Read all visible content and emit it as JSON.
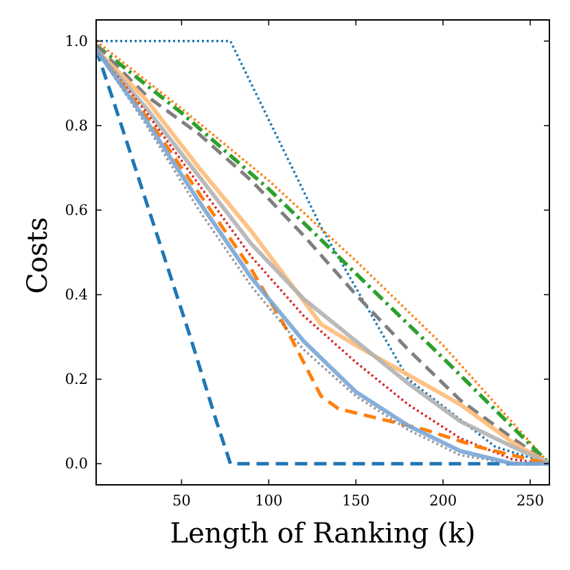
{
  "chart_data": {
    "type": "line",
    "title": "",
    "xlabel": "Length of Ranking (k)",
    "ylabel": "Costs",
    "xlim": [
      1,
      261
    ],
    "ylim": [
      -0.05,
      1.05
    ],
    "xticks": [
      50,
      100,
      150,
      200,
      250
    ],
    "xtick_labels": [
      "50",
      "100",
      "150",
      "200",
      "250"
    ],
    "yticks": [
      0.0,
      0.2,
      0.4,
      0.6,
      0.8,
      1.0
    ],
    "ytick_labels": [
      "0.0",
      "0.2",
      "0.4",
      "0.6",
      "0.8",
      "1.0"
    ],
    "grid": false,
    "legend": "none",
    "series": [
      {
        "color": "#1f77b4",
        "style": "dotted",
        "opacity": 1,
        "x": [
          1,
          78,
          130,
          180,
          230,
          261
        ],
        "y": [
          1.0,
          1.0,
          0.56,
          0.2,
          0.04,
          0.0
        ]
      },
      {
        "color": "#1f77b4",
        "style": "dashed",
        "opacity": 1,
        "x": [
          1,
          10,
          25,
          40,
          55,
          70,
          78,
          150,
          261
        ],
        "y": [
          0.98,
          0.87,
          0.68,
          0.49,
          0.3,
          0.1,
          0.0,
          0.0,
          0.0
        ]
      },
      {
        "color": "#ff7f0e",
        "style": "dotted",
        "opacity": 1,
        "x": [
          1,
          50,
          100,
          150,
          200,
          261
        ],
        "y": [
          1.0,
          0.84,
          0.67,
          0.48,
          0.28,
          0.0
        ]
      },
      {
        "color": "#2ca02c",
        "style": "dashdot",
        "opacity": 1,
        "x": [
          1,
          50,
          100,
          150,
          200,
          261
        ],
        "y": [
          0.99,
          0.83,
          0.65,
          0.45,
          0.25,
          0.0
        ]
      },
      {
        "color": "#7f7f7f",
        "style": "dashed",
        "opacity": 1,
        "x": [
          1,
          30,
          60,
          90,
          120,
          150,
          180,
          210,
          240,
          261
        ],
        "y": [
          0.99,
          0.87,
          0.78,
          0.67,
          0.54,
          0.4,
          0.27,
          0.15,
          0.06,
          0.0
        ]
      },
      {
        "color": "#ffbb78",
        "style": "solid",
        "opacity": 0.9,
        "x": [
          1,
          30,
          60,
          90,
          110,
          130,
          150,
          180,
          210,
          240,
          261
        ],
        "y": [
          0.98,
          0.86,
          0.7,
          0.55,
          0.44,
          0.33,
          0.28,
          0.21,
          0.14,
          0.05,
          0.0
        ]
      },
      {
        "color": "#b3b3b3",
        "style": "solid",
        "opacity": 0.9,
        "x": [
          1,
          30,
          60,
          90,
          120,
          150,
          180,
          210,
          240,
          261
        ],
        "y": [
          0.98,
          0.84,
          0.68,
          0.52,
          0.39,
          0.29,
          0.19,
          0.1,
          0.04,
          0.0
        ]
      },
      {
        "color": "#d62728",
        "style": "dotted",
        "opacity": 1,
        "x": [
          1,
          30,
          60,
          90,
          120,
          150,
          180,
          210,
          240,
          261
        ],
        "y": [
          0.98,
          0.83,
          0.66,
          0.49,
          0.35,
          0.24,
          0.14,
          0.06,
          0.01,
          0.0
        ]
      },
      {
        "color": "#ff7f0e",
        "style": "dashed",
        "opacity": 1,
        "x": [
          1,
          30,
          60,
          90,
          110,
          130,
          140,
          160,
          190,
          220,
          250,
          261
        ],
        "y": [
          0.98,
          0.82,
          0.64,
          0.46,
          0.32,
          0.16,
          0.13,
          0.11,
          0.08,
          0.04,
          0.01,
          0.0
        ]
      },
      {
        "color": "#7f7f7f",
        "style": "dotted",
        "opacity": 0.8,
        "x": [
          1,
          30,
          60,
          90,
          120,
          150,
          180,
          210,
          240,
          261
        ],
        "y": [
          0.98,
          0.8,
          0.6,
          0.42,
          0.27,
          0.16,
          0.08,
          0.02,
          0.0,
          0.0
        ]
      },
      {
        "color": "#7aa6d6",
        "style": "solid",
        "opacity": 0.9,
        "x": [
          1,
          30,
          60,
          90,
          120,
          150,
          180,
          210,
          240,
          261
        ],
        "y": [
          0.98,
          0.81,
          0.62,
          0.44,
          0.29,
          0.17,
          0.09,
          0.03,
          0.0,
          0.0
        ]
      }
    ]
  }
}
